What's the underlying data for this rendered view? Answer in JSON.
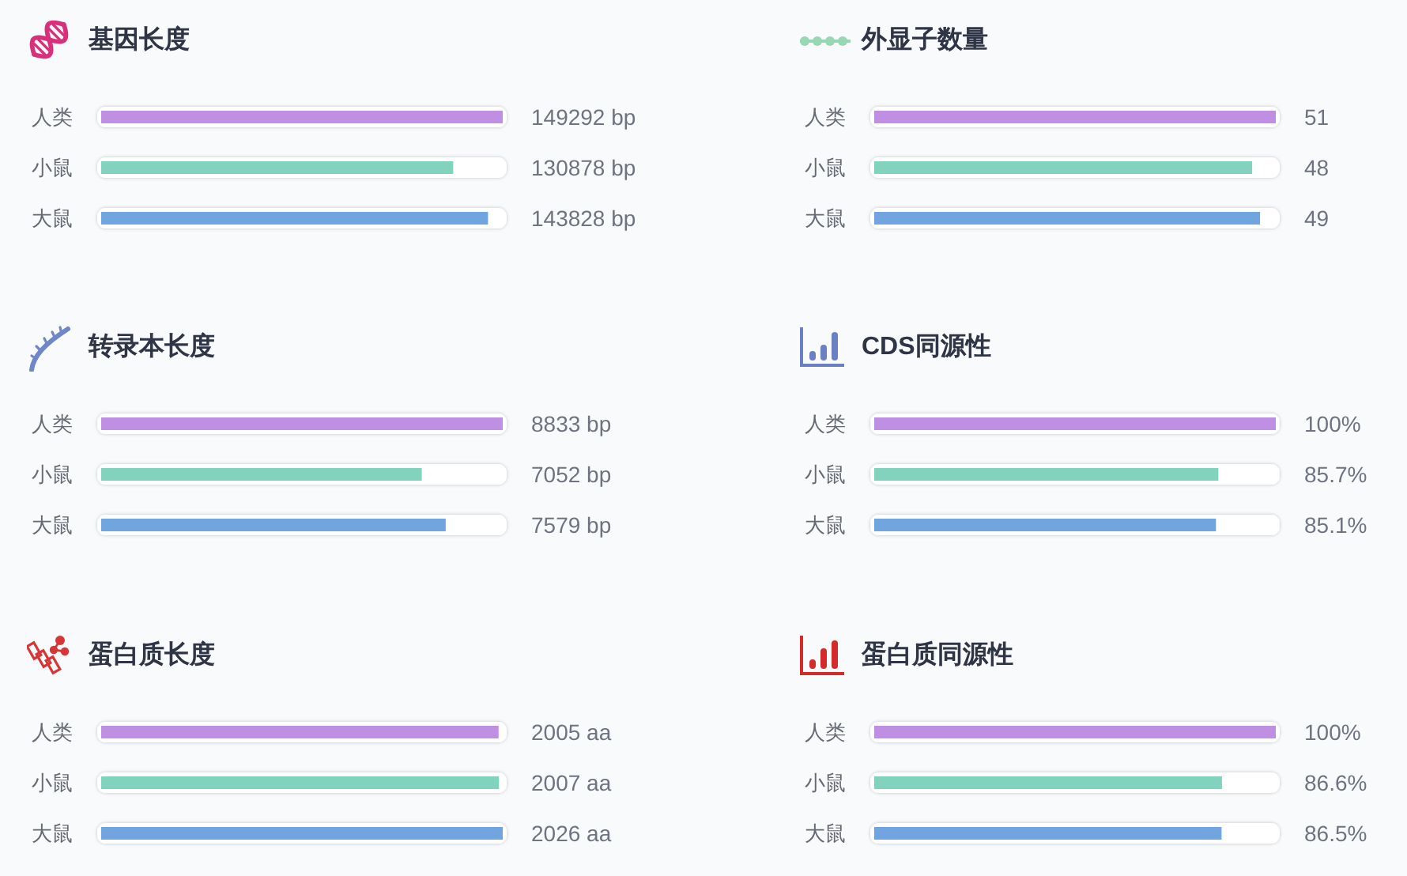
{
  "chart_data": [
    {
      "type": "bar",
      "orientation": "horizontal",
      "title": "基因长度",
      "categories": [
        "人类",
        "小鼠",
        "大鼠"
      ],
      "values": [
        149292,
        130878,
        143828
      ],
      "colors": [
        "#bf8fe3",
        "#82d3bd",
        "#71a5e0"
      ],
      "value_labels": [
        "149292 bp",
        "130878 bp",
        "143828 bp"
      ]
    },
    {
      "type": "bar",
      "orientation": "horizontal",
      "title": "外显子数量",
      "categories": [
        "人类",
        "小鼠",
        "大鼠"
      ],
      "values": [
        51,
        48,
        49
      ],
      "colors": [
        "#bf8fe3",
        "#82d3bd",
        "#71a5e0"
      ],
      "value_labels": [
        "51",
        "48",
        "49"
      ]
    },
    {
      "type": "bar",
      "orientation": "horizontal",
      "title": "转录本长度",
      "categories": [
        "人类",
        "小鼠",
        "大鼠"
      ],
      "values": [
        8833,
        7052,
        7579
      ],
      "colors": [
        "#bf8fe3",
        "#82d3bd",
        "#71a5e0"
      ],
      "value_labels": [
        "8833 bp",
        "7052 bp",
        "7579 bp"
      ]
    },
    {
      "type": "bar",
      "orientation": "horizontal",
      "title": "CDS同源性",
      "categories": [
        "人类",
        "小鼠",
        "大鼠"
      ],
      "values": [
        100,
        85.7,
        85.1
      ],
      "colors": [
        "#bf8fe3",
        "#82d3bd",
        "#71a5e0"
      ],
      "value_labels": [
        "100%",
        "85.7%",
        "85.1%"
      ]
    },
    {
      "type": "bar",
      "orientation": "horizontal",
      "title": "蛋白质长度",
      "categories": [
        "人类",
        "小鼠",
        "大鼠"
      ],
      "values": [
        2005,
        2007,
        2026
      ],
      "colors": [
        "#bf8fe3",
        "#82d3bd",
        "#71a5e0"
      ],
      "value_labels": [
        "2005 aa",
        "2007 aa",
        "2026 aa"
      ]
    },
    {
      "type": "bar",
      "orientation": "horizontal",
      "title": "蛋白质同源性",
      "categories": [
        "人类",
        "小鼠",
        "大鼠"
      ],
      "values": [
        100,
        86.6,
        86.5
      ],
      "colors": [
        "#bf8fe3",
        "#82d3bd",
        "#71a5e0"
      ],
      "value_labels": [
        "100%",
        "86.6%",
        "86.5%"
      ]
    }
  ]
}
